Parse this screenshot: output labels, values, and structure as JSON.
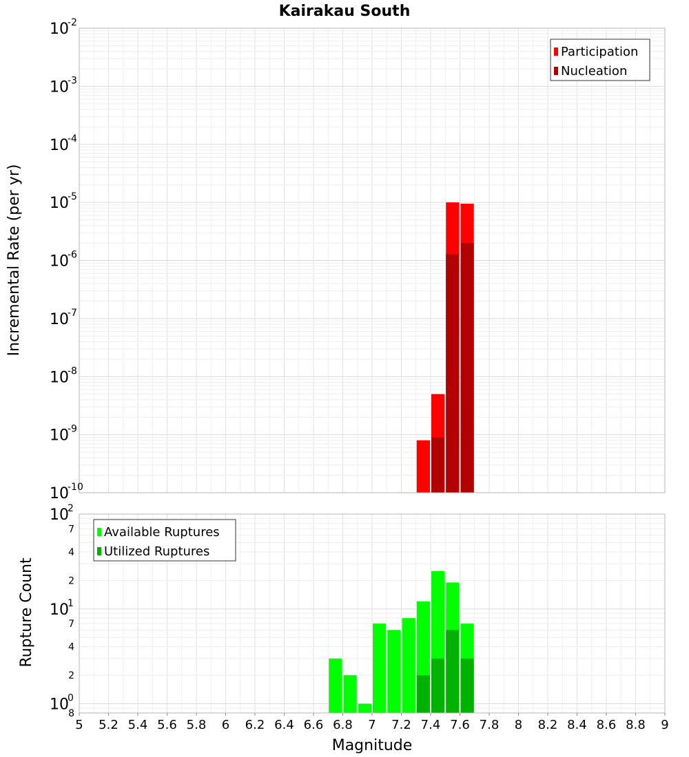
{
  "chart_data": [
    {
      "type": "bar",
      "title": "Kairakau South",
      "xlabel": "",
      "ylabel": "Incremental Rate (per yr)",
      "yscale": "log",
      "xlim": [
        5,
        9
      ],
      "ylim": [
        1e-10,
        0.01
      ],
      "y_tick_labels": [
        {
          "base": "10",
          "exp": "-10"
        },
        {
          "base": "10",
          "exp": "-9"
        },
        {
          "base": "10",
          "exp": "-8"
        },
        {
          "base": "10",
          "exp": "-7"
        },
        {
          "base": "10",
          "exp": "-6"
        },
        {
          "base": "10",
          "exp": "-5"
        },
        {
          "base": "10",
          "exp": "-4"
        },
        {
          "base": "10",
          "exp": "-3"
        },
        {
          "base": "10",
          "exp": "-2"
        }
      ],
      "legend": [
        {
          "label": "Participation",
          "color": "#ff0000"
        },
        {
          "label": "Nucleation",
          "color": "#b20000"
        }
      ],
      "legend_position": "top-right",
      "bin_width": 0.1,
      "series": [
        {
          "name": "Participation",
          "color": "#ff0000",
          "x": [
            7.35,
            7.45,
            7.55,
            7.65
          ],
          "values": [
            8e-10,
            5e-09,
            1e-05,
            9.5e-06
          ]
        },
        {
          "name": "Nucleation",
          "color": "#b20000",
          "x": [
            7.45,
            7.55,
            7.65
          ],
          "values": [
            9e-10,
            1.3e-06,
            2e-06
          ]
        }
      ]
    },
    {
      "type": "bar",
      "title": "",
      "xlabel": "Magnitude",
      "ylabel": "Rupture Count",
      "yscale": "log",
      "xlim": [
        5,
        9
      ],
      "ylim": [
        0.8,
        100
      ],
      "y_tick_labels": [
        {
          "base": "10",
          "exp": "0"
        },
        {
          "base": "10",
          "exp": "1"
        },
        {
          "base": "10",
          "exp": "2"
        }
      ],
      "y_minor_labels": [
        {
          "value": 0.8,
          "label": "8"
        },
        {
          "value": 2,
          "label": "2"
        },
        {
          "value": 4,
          "label": "4"
        },
        {
          "value": 7,
          "label": "7"
        },
        {
          "value": 20,
          "label": "2"
        },
        {
          "value": 40,
          "label": "4"
        },
        {
          "value": 70,
          "label": "7"
        }
      ],
      "x_ticks": [
        "5",
        "5.2",
        "5.4",
        "5.6",
        "5.8",
        "6",
        "6.2",
        "6.4",
        "6.6",
        "6.8",
        "7",
        "7.2",
        "7.4",
        "7.6",
        "7.8",
        "8",
        "8.2",
        "8.4",
        "8.6",
        "8.8",
        "9"
      ],
      "legend": [
        {
          "label": "Available Ruptures",
          "color": "#00ff00"
        },
        {
          "label": "Utilized Ruptures",
          "color": "#00b200"
        }
      ],
      "legend_position": "top-left",
      "bin_width": 0.1,
      "series": [
        {
          "name": "Available Ruptures",
          "color": "#00ff00",
          "x": [
            6.75,
            6.85,
            6.95,
            7.05,
            7.15,
            7.25,
            7.35,
            7.45,
            7.55,
            7.65
          ],
          "values": [
            3,
            2,
            1,
            7,
            6,
            8,
            12,
            25,
            19,
            7
          ]
        },
        {
          "name": "Utilized Ruptures",
          "color": "#00b200",
          "x": [
            7.35,
            7.45,
            7.55,
            7.65
          ],
          "values": [
            2,
            3,
            6,
            3
          ]
        }
      ]
    }
  ]
}
